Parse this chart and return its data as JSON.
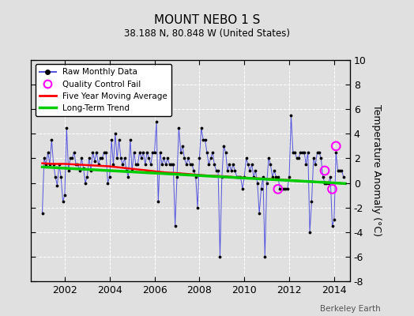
{
  "title": "MOUNT NEBO 1 S",
  "subtitle": "38.188 N, 80.848 W (United States)",
  "ylabel": "Temperature Anomaly (°C)",
  "watermark": "Berkeley Earth",
  "ylim": [
    -8,
    10
  ],
  "xlim": [
    2000.5,
    2014.7
  ],
  "yticks": [
    -8,
    -6,
    -4,
    -2,
    0,
    2,
    4,
    6,
    8,
    10
  ],
  "xticks": [
    2002,
    2004,
    2006,
    2008,
    2010,
    2012,
    2014
  ],
  "bg_color": "#e0e0e0",
  "plot_bg_color": "#e0e0e0",
  "raw_color": "#5555dd",
  "raw_lw": 0.7,
  "dot_color": "black",
  "dot_size": 3,
  "ma_color": "red",
  "ma_lw": 1.8,
  "trend_color": "#00cc00",
  "trend_lw": 2.5,
  "qc_color": "magenta",
  "raw_data": {
    "times": [
      2001.0,
      2001.083,
      2001.167,
      2001.25,
      2001.333,
      2001.417,
      2001.5,
      2001.583,
      2001.667,
      2001.75,
      2001.833,
      2001.917,
      2002.0,
      2002.083,
      2002.167,
      2002.25,
      2002.333,
      2002.417,
      2002.5,
      2002.583,
      2002.667,
      2002.75,
      2002.833,
      2002.917,
      2003.0,
      2003.083,
      2003.167,
      2003.25,
      2003.333,
      2003.417,
      2003.5,
      2003.583,
      2003.667,
      2003.75,
      2003.833,
      2003.917,
      2004.0,
      2004.083,
      2004.167,
      2004.25,
      2004.333,
      2004.417,
      2004.5,
      2004.583,
      2004.667,
      2004.75,
      2004.833,
      2004.917,
      2005.0,
      2005.083,
      2005.167,
      2005.25,
      2005.333,
      2005.417,
      2005.5,
      2005.583,
      2005.667,
      2005.75,
      2005.833,
      2005.917,
      2006.0,
      2006.083,
      2006.167,
      2006.25,
      2006.333,
      2006.417,
      2006.5,
      2006.583,
      2006.667,
      2006.75,
      2006.833,
      2006.917,
      2007.0,
      2007.083,
      2007.167,
      2007.25,
      2007.333,
      2007.417,
      2007.5,
      2007.583,
      2007.667,
      2007.75,
      2007.833,
      2007.917,
      2008.0,
      2008.083,
      2008.167,
      2008.25,
      2008.333,
      2008.417,
      2008.5,
      2008.583,
      2008.667,
      2008.75,
      2008.833,
      2008.917,
      2009.0,
      2009.083,
      2009.167,
      2009.25,
      2009.333,
      2009.417,
      2009.5,
      2009.583,
      2009.667,
      2009.75,
      2009.833,
      2009.917,
      2010.0,
      2010.083,
      2010.167,
      2010.25,
      2010.333,
      2010.417,
      2010.5,
      2010.583,
      2010.667,
      2010.75,
      2010.833,
      2010.917,
      2011.0,
      2011.083,
      2011.167,
      2011.25,
      2011.333,
      2011.417,
      2011.5,
      2011.583,
      2011.667,
      2011.75,
      2011.833,
      2011.917,
      2012.0,
      2012.083,
      2012.167,
      2012.25,
      2012.333,
      2012.417,
      2012.5,
      2012.583,
      2012.667,
      2012.75,
      2012.833,
      2012.917,
      2013.0,
      2013.083,
      2013.167,
      2013.25,
      2013.333,
      2013.417,
      2013.5,
      2013.583,
      2013.667,
      2013.75,
      2013.833,
      2013.917,
      2014.0,
      2014.083,
      2014.167,
      2014.25,
      2014.333,
      2014.417
    ],
    "values": [
      -2.5,
      2.0,
      1.5,
      2.5,
      1.5,
      3.5,
      1.5,
      0.5,
      -0.2,
      1.5,
      0.5,
      -1.5,
      -1.0,
      4.5,
      1.0,
      2.0,
      2.0,
      2.5,
      1.5,
      1.5,
      1.0,
      2.0,
      1.2,
      0.0,
      0.5,
      2.0,
      1.0,
      2.5,
      1.8,
      2.5,
      1.5,
      2.0,
      2.0,
      2.5,
      2.5,
      0.0,
      0.5,
      3.5,
      1.5,
      4.0,
      2.0,
      3.5,
      2.0,
      1.5,
      2.0,
      1.0,
      0.5,
      3.5,
      1.0,
      2.5,
      1.5,
      1.5,
      2.5,
      2.0,
      2.5,
      1.5,
      2.5,
      2.0,
      1.5,
      2.5,
      2.5,
      5.0,
      -1.5,
      2.5,
      1.5,
      2.0,
      1.5,
      2.0,
      1.5,
      1.5,
      1.5,
      -3.5,
      0.5,
      4.5,
      2.5,
      3.0,
      2.0,
      1.5,
      2.0,
      1.5,
      1.5,
      1.0,
      0.5,
      -2.0,
      2.0,
      4.5,
      3.5,
      3.5,
      2.5,
      1.5,
      2.0,
      2.5,
      1.5,
      1.0,
      1.0,
      -6.0,
      0.5,
      3.0,
      2.5,
      1.0,
      1.5,
      1.0,
      1.5,
      1.0,
      0.5,
      0.5,
      0.5,
      -0.5,
      0.5,
      2.0,
      1.5,
      1.0,
      1.5,
      0.5,
      1.0,
      0.0,
      -2.5,
      -0.5,
      0.5,
      -6.0,
      0.0,
      2.0,
      1.5,
      0.5,
      1.0,
      0.5,
      0.5,
      -0.5,
      -0.5,
      -0.5,
      -0.5,
      -0.5,
      0.5,
      5.5,
      2.5,
      2.5,
      2.0,
      2.0,
      2.5,
      2.5,
      2.5,
      1.5,
      2.5,
      -4.0,
      -1.5,
      2.0,
      1.5,
      2.5,
      2.5,
      2.0,
      0.5,
      0.0,
      0.0,
      0.0,
      0.5,
      -3.5,
      -3.0,
      2.5,
      1.0,
      1.0,
      1.0,
      0.5
    ]
  },
  "ma_data": {
    "times": [
      2001.0,
      2001.5,
      2002.0,
      2002.5,
      2003.0,
      2003.5,
      2004.0,
      2004.5,
      2005.0,
      2005.5,
      2006.0,
      2006.5,
      2007.0,
      2007.5,
      2008.0,
      2008.5,
      2009.0,
      2009.5,
      2010.0,
      2010.5,
      2011.0,
      2011.5,
      2012.0,
      2012.5,
      2013.0,
      2013.5,
      2014.0,
      2014.42
    ],
    "values": [
      1.6,
      1.55,
      1.55,
      1.5,
      1.45,
      1.4,
      1.35,
      1.25,
      1.15,
      1.05,
      0.95,
      0.85,
      0.8,
      0.72,
      0.65,
      0.58,
      0.55,
      0.48,
      0.42,
      0.38,
      0.32,
      0.28,
      0.22,
      0.15,
      0.1,
      0.05,
      0.0,
      -0.05
    ]
  },
  "trend_data": {
    "times": [
      2001.0,
      2014.5
    ],
    "values": [
      1.3,
      -0.05
    ]
  },
  "qc_points": {
    "times": [
      2011.5,
      2013.583,
      2013.917,
      2014.083
    ],
    "values": [
      -0.5,
      1.0,
      -0.5,
      3.0
    ]
  }
}
